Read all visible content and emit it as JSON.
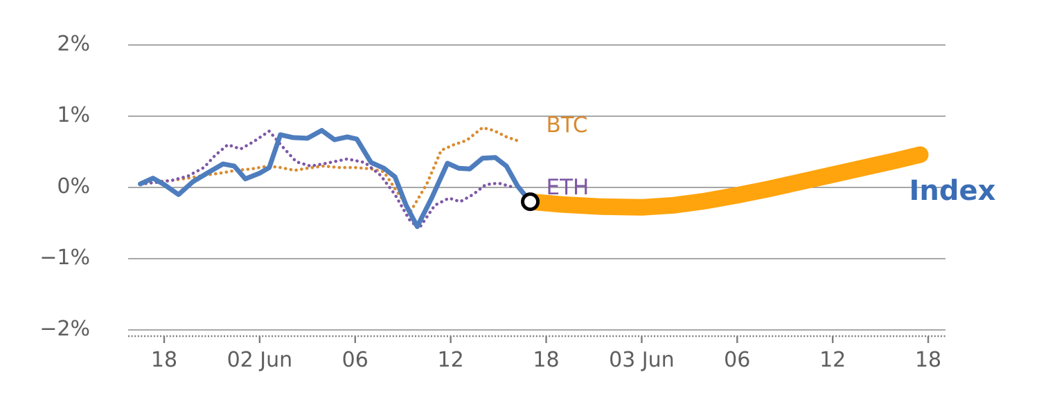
{
  "chart_data": {
    "type": "line",
    "title": "",
    "xlabel": "",
    "ylabel": "",
    "ylim": [
      -2.35,
      2.35
    ],
    "grid": true,
    "legend": "inline-annotations",
    "yticks": [
      {
        "value": 2,
        "label": "2%"
      },
      {
        "value": 1,
        "label": "1%"
      },
      {
        "value": 0,
        "label": "0%"
      },
      {
        "value": -1,
        "label": "−1%"
      },
      {
        "value": -2,
        "label": "−2%"
      }
    ],
    "xticks": [
      {
        "t": 18,
        "label": "18"
      },
      {
        "t": 24,
        "label": "02 Jun"
      },
      {
        "t": 30,
        "label": "06"
      },
      {
        "t": 36,
        "label": "12"
      },
      {
        "t": 42,
        "label": "18"
      },
      {
        "t": 48,
        "label": "03 Jun"
      },
      {
        "t": 54,
        "label": "06"
      },
      {
        "t": 60,
        "label": "12"
      },
      {
        "t": 66,
        "label": "18"
      }
    ],
    "colors": {
      "grid": "#8a8a8a",
      "axis": "#7d7d7d",
      "tick_text": "#5e5e5e"
    },
    "series": [
      {
        "name": "Index forecast",
        "color": "#ffa40d",
        "style": "solid",
        "width": 24,
        "points": [
          [
            41.0,
            -0.2
          ],
          [
            43.0,
            -0.24
          ],
          [
            45.5,
            -0.27
          ],
          [
            48.0,
            -0.28
          ],
          [
            50.0,
            -0.25
          ],
          [
            52.0,
            -0.19
          ],
          [
            54.0,
            -0.11
          ],
          [
            56.0,
            -0.02
          ],
          [
            58.0,
            0.08
          ],
          [
            60.0,
            0.18
          ],
          [
            62.0,
            0.28
          ],
          [
            64.0,
            0.38
          ],
          [
            65.5,
            0.46
          ]
        ]
      },
      {
        "name": "BTC",
        "color": "#d98b2f",
        "style": "dotted",
        "width": 4.5,
        "points": [
          [
            16.5,
            0.04
          ],
          [
            17.5,
            0.08
          ],
          [
            18.5,
            0.1
          ],
          [
            19.5,
            0.13
          ],
          [
            20.5,
            0.17
          ],
          [
            21.5,
            0.2
          ],
          [
            22.5,
            0.24
          ],
          [
            23.5,
            0.26
          ],
          [
            24.5,
            0.3
          ],
          [
            25.3,
            0.28
          ],
          [
            26.2,
            0.24
          ],
          [
            27.0,
            0.27
          ],
          [
            28.0,
            0.3
          ],
          [
            29.0,
            0.28
          ],
          [
            30.0,
            0.28
          ],
          [
            31.0,
            0.26
          ],
          [
            31.8,
            0.22
          ],
          [
            32.6,
            -0.05
          ],
          [
            33.5,
            -0.33
          ],
          [
            34.5,
            0.05
          ],
          [
            35.4,
            0.52
          ],
          [
            36.2,
            0.6
          ],
          [
            37.0,
            0.66
          ],
          [
            38.0,
            0.84
          ],
          [
            38.7,
            0.8
          ],
          [
            39.5,
            0.71
          ],
          [
            40.3,
            0.65
          ]
        ]
      },
      {
        "name": "ETH",
        "color": "#7d57a6",
        "style": "dotted",
        "width": 4.5,
        "points": [
          [
            16.5,
            0.05
          ],
          [
            17.5,
            0.07
          ],
          [
            18.5,
            0.1
          ],
          [
            19.5,
            0.16
          ],
          [
            20.5,
            0.28
          ],
          [
            21.2,
            0.45
          ],
          [
            22.0,
            0.6
          ],
          [
            22.8,
            0.54
          ],
          [
            23.6,
            0.64
          ],
          [
            24.6,
            0.79
          ],
          [
            25.4,
            0.58
          ],
          [
            26.3,
            0.36
          ],
          [
            27.2,
            0.3
          ],
          [
            28.2,
            0.34
          ],
          [
            29.5,
            0.4
          ],
          [
            30.6,
            0.35
          ],
          [
            31.6,
            0.17
          ],
          [
            32.5,
            -0.1
          ],
          [
            33.4,
            -0.45
          ],
          [
            34.0,
            -0.58
          ],
          [
            35.0,
            -0.25
          ],
          [
            35.9,
            -0.15
          ],
          [
            36.6,
            -0.2
          ],
          [
            37.4,
            -0.1
          ],
          [
            38.2,
            0.04
          ],
          [
            39.0,
            0.06
          ],
          [
            40.0,
            0.0
          ]
        ]
      },
      {
        "name": "Index",
        "color": "#4e7dbe",
        "style": "solid",
        "width": 7,
        "points": [
          [
            16.5,
            0.05
          ],
          [
            17.3,
            0.13
          ],
          [
            18.0,
            0.04
          ],
          [
            18.9,
            -0.1
          ],
          [
            19.8,
            0.08
          ],
          [
            20.7,
            0.2
          ],
          [
            21.7,
            0.33
          ],
          [
            22.4,
            0.3
          ],
          [
            23.1,
            0.12
          ],
          [
            24.0,
            0.2
          ],
          [
            24.6,
            0.28
          ],
          [
            25.3,
            0.74
          ],
          [
            26.1,
            0.7
          ],
          [
            27.0,
            0.69
          ],
          [
            27.9,
            0.8
          ],
          [
            28.7,
            0.67
          ],
          [
            29.5,
            0.71
          ],
          [
            30.1,
            0.68
          ],
          [
            31.0,
            0.35
          ],
          [
            31.8,
            0.27
          ],
          [
            32.5,
            0.15
          ],
          [
            33.2,
            -0.25
          ],
          [
            33.9,
            -0.55
          ],
          [
            34.8,
            -0.15
          ],
          [
            35.8,
            0.34
          ],
          [
            36.5,
            0.27
          ],
          [
            37.2,
            0.26
          ],
          [
            38.0,
            0.41
          ],
          [
            38.8,
            0.42
          ],
          [
            39.5,
            0.3
          ],
          [
            40.2,
            0.02
          ],
          [
            41.0,
            -0.2
          ]
        ]
      }
    ],
    "marker": {
      "t": 41.0,
      "value": -0.2,
      "fill": "#ffffff",
      "edge": "#000000",
      "radius": 11,
      "edge_width": 5
    },
    "annotations": [
      {
        "text": "BTC",
        "t": 42.0,
        "value": 0.85,
        "color": "#d98b2f",
        "size": 31,
        "weight": "normal"
      },
      {
        "text": "ETH",
        "t": 42.0,
        "value": -0.02,
        "color": "#7d57a6",
        "size": 31,
        "weight": "normal"
      },
      {
        "text": "Index",
        "t": 64.8,
        "value": -0.08,
        "color": "#3a6db5",
        "size": 40,
        "weight": "bold"
      }
    ]
  }
}
